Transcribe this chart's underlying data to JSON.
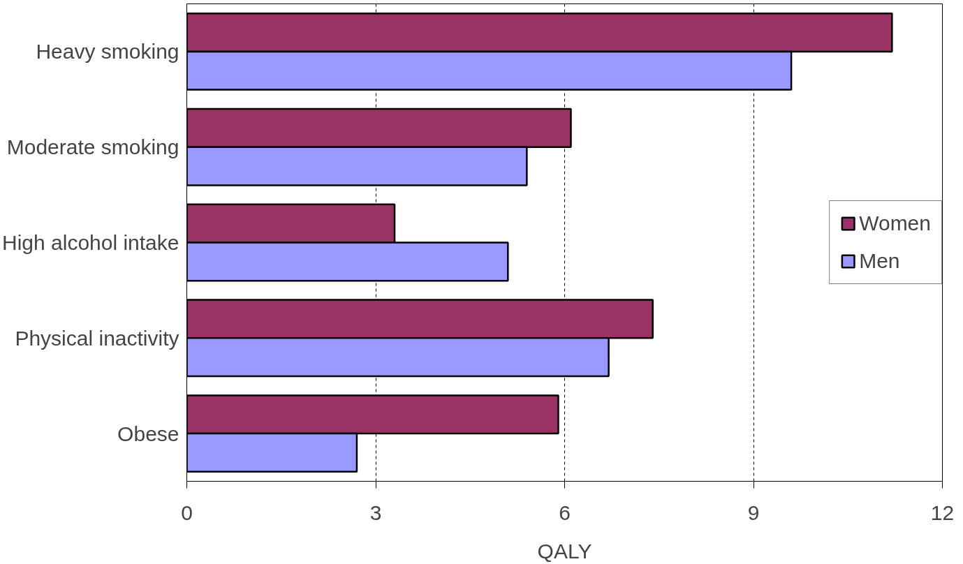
{
  "chart_data": {
    "type": "bar",
    "orientation": "horizontal",
    "xlabel": "QALY",
    "categories": [
      "Heavy smoking",
      "Moderate smoking",
      "High alcohol intake",
      "Physical inactivity",
      "Obese"
    ],
    "series": [
      {
        "name": "Women",
        "color": "#993366",
        "values": [
          11.2,
          6.1,
          3.3,
          7.4,
          5.9
        ]
      },
      {
        "name": "Men",
        "color": "#9999ff",
        "values": [
          9.6,
          5.4,
          5.1,
          6.7,
          2.7
        ]
      }
    ],
    "xlim": [
      0,
      12
    ],
    "xticks": [
      0,
      3,
      6,
      9,
      12
    ],
    "grid": "x",
    "legend": "right"
  }
}
